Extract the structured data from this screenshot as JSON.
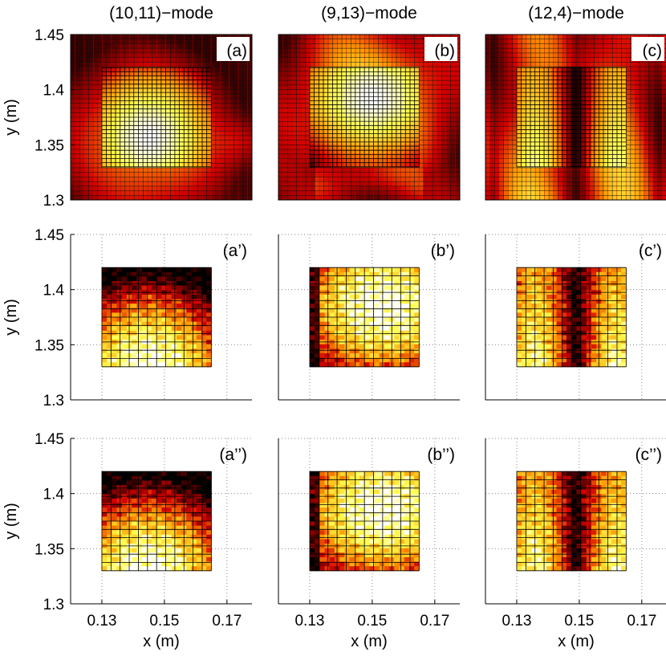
{
  "chart_data": {
    "type": "heatmap",
    "column_titles": [
      "(10,11)−mode",
      "(9,13)−mode",
      "(12,4)−mode"
    ],
    "xlabel": "x (m)",
    "ylabel": "y (m)",
    "xlim": [
      0.12,
      0.178
    ],
    "ylim": [
      1.3,
      1.45
    ],
    "xticks": [
      0.13,
      0.15,
      0.17
    ],
    "xtick_labels": [
      "0.13",
      "0.15",
      "0.17"
    ],
    "yticks": [
      1.3,
      1.35,
      1.4,
      1.45
    ],
    "ytick_labels": [
      "1.3",
      "1.35",
      "1.4",
      "1.45"
    ],
    "measurement_window": {
      "x": [
        0.13,
        0.165
      ],
      "y": [
        1.33,
        1.42
      ]
    },
    "colormap": [
      "#000000",
      "#d40000",
      "#ff9a00",
      "#ffff50",
      "#ffffff"
    ],
    "panels": [
      {
        "label": "(a)",
        "row": 0,
        "col": 0,
        "mode": [
          10,
          11
        ],
        "kind": "theory"
      },
      {
        "label": "(b)",
        "row": 0,
        "col": 1,
        "mode": [
          9,
          13
        ],
        "kind": "theory"
      },
      {
        "label": "(c)",
        "row": 0,
        "col": 2,
        "mode": [
          12,
          4
        ],
        "kind": "theory"
      },
      {
        "label": "(a’)",
        "row": 1,
        "col": 0,
        "mode": [
          10,
          11
        ],
        "kind": "measured"
      },
      {
        "label": "(b’)",
        "row": 1,
        "col": 1,
        "mode": [
          9,
          13
        ],
        "kind": "measured"
      },
      {
        "label": "(c’)",
        "row": 1,
        "col": 2,
        "mode": [
          12,
          4
        ],
        "kind": "measured"
      },
      {
        "label": "(a’’)",
        "row": 2,
        "col": 0,
        "mode": [
          10,
          11
        ],
        "kind": "reconstructed"
      },
      {
        "label": "(b’’)",
        "row": 2,
        "col": 1,
        "mode": [
          9,
          13
        ],
        "kind": "reconstructed"
      },
      {
        "label": "(c’’)",
        "row": 2,
        "col": 2,
        "mode": [
          12,
          4
        ],
        "kind": "reconstructed"
      }
    ]
  }
}
